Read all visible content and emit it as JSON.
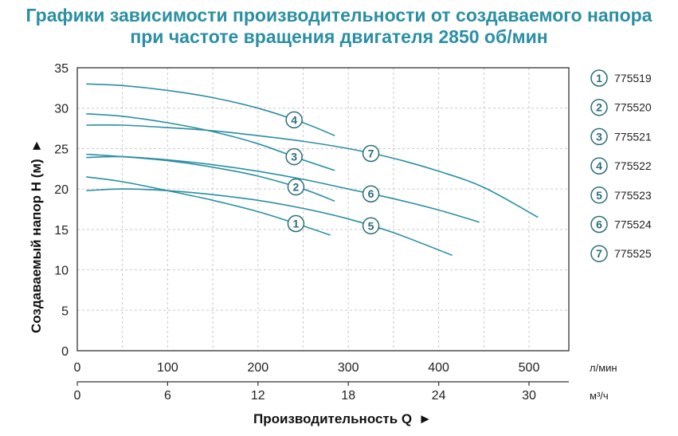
{
  "title_line1": "Графики зависимости производительности от создаваемого напора",
  "title_line2": "при частоте вращения двигателя 2850 об/мин",
  "chart_data": {
    "type": "line",
    "title": "Графики зависимости производительности от создаваемого напора при частоте вращения двигателя 2850 об/мин",
    "xlabel": "Производительность Q",
    "ylabel": "Создаваемый напор H (м)",
    "x_unit_primary": "л/мин",
    "x_unit_secondary": "м³/ч",
    "xlim": [
      0,
      550
    ],
    "ylim": [
      0,
      35
    ],
    "x_ticks_primary": [
      "0",
      "100",
      "200",
      "300",
      "400",
      "500"
    ],
    "x_ticks_secondary": [
      "0",
      "6",
      "12",
      "18",
      "24",
      "30"
    ],
    "y_ticks": [
      "0",
      "5",
      "10",
      "15",
      "20",
      "25",
      "30",
      "35"
    ],
    "grid": true,
    "legend_position": "right",
    "series": [
      {
        "name": "775519",
        "marker": "1",
        "marker_at": 242,
        "x": [
          10,
          50,
          100,
          150,
          200,
          240,
          280
        ],
        "y": [
          21.5,
          20.9,
          19.8,
          18.6,
          17.2,
          15.8,
          14.3
        ]
      },
      {
        "name": "775520",
        "marker": "2",
        "marker_at": 242,
        "x": [
          10,
          50,
          100,
          150,
          200,
          250,
          285
        ],
        "y": [
          24.3,
          24.0,
          23.5,
          22.7,
          21.6,
          20.0,
          18.5
        ]
      },
      {
        "name": "775521",
        "marker": "3",
        "marker_at": 240,
        "x": [
          10,
          50,
          100,
          150,
          200,
          250,
          285
        ],
        "y": [
          29.3,
          29.0,
          28.2,
          27.1,
          25.6,
          23.6,
          22.3
        ]
      },
      {
        "name": "775522",
        "marker": "4",
        "marker_at": 240,
        "x": [
          10,
          50,
          100,
          150,
          200,
          250,
          285
        ],
        "y": [
          33.0,
          32.8,
          32.2,
          31.3,
          30.0,
          28.2,
          26.6
        ]
      },
      {
        "name": "775523",
        "marker": "5",
        "marker_at": 325,
        "x": [
          10,
          50,
          100,
          150,
          200,
          250,
          300,
          350,
          415
        ],
        "y": [
          19.8,
          20.0,
          19.8,
          19.3,
          18.6,
          17.6,
          16.3,
          14.6,
          11.8
        ]
      },
      {
        "name": "775524",
        "marker": "6",
        "marker_at": 325,
        "x": [
          10,
          50,
          100,
          150,
          200,
          250,
          300,
          350,
          400,
          445
        ],
        "y": [
          23.9,
          24.0,
          23.6,
          23.0,
          22.2,
          21.2,
          20.0,
          18.8,
          17.4,
          15.9
        ]
      },
      {
        "name": "775525",
        "marker": "7",
        "marker_at": 325,
        "x": [
          10,
          50,
          100,
          150,
          200,
          250,
          300,
          350,
          400,
          450,
          510
        ],
        "y": [
          27.9,
          27.9,
          27.6,
          27.2,
          26.6,
          25.9,
          25.0,
          23.8,
          22.2,
          20.2,
          16.5
        ]
      }
    ]
  },
  "colors": {
    "title": "#2a8fa3",
    "curve": "#2a8fa3",
    "marker": "#2a6e7a",
    "frame": "#333333",
    "grid": "#c9c9c9"
  }
}
